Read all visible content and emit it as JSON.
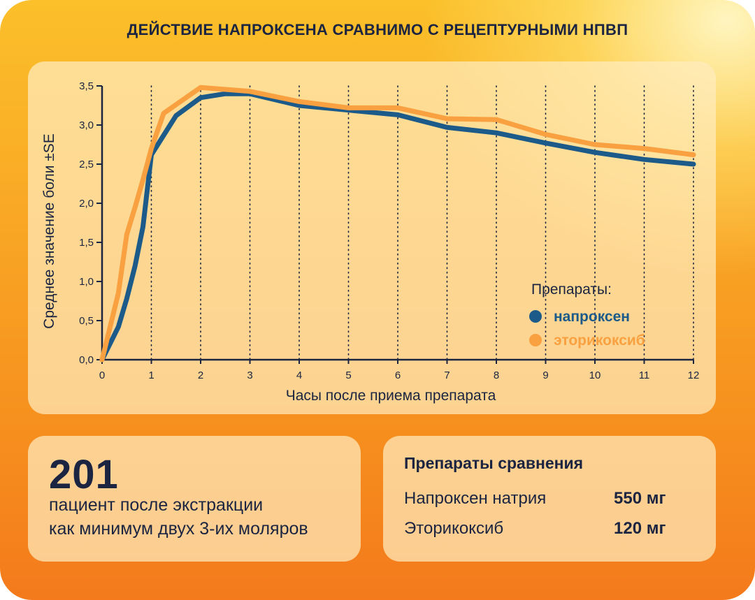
{
  "title": "ДЕЙСТВИЕ НАПРОКСЕНА СРАВНИМО С РЕЦЕПТУРНЫМИ НПВП",
  "colors": {
    "naproxen": "#1c5a8a",
    "etoricoxib": "#f9a040",
    "axis": "#1b2440",
    "text": "#1b2440"
  },
  "chart_data": {
    "type": "line",
    "xlabel": "Часы после приема препарата",
    "ylabel": "Среднее значение боли ±SE",
    "xlim": [
      0,
      12
    ],
    "ylim": [
      0,
      3.5
    ],
    "x_ticks": [
      "0",
      "1",
      "2",
      "3",
      "4",
      "5",
      "6",
      "7",
      "8",
      "9",
      "10",
      "11",
      "12"
    ],
    "y_ticks": [
      "0,0",
      "0,5",
      "1,0",
      "1,5",
      "2,0",
      "2,5",
      "3,0",
      "3,5"
    ],
    "grid": "vertical dotted",
    "legend_title": "Препараты:",
    "legend_position": "bottom-right",
    "series": [
      {
        "name": "напроксен",
        "color": "#1c5a8a",
        "x": [
          0,
          0.33,
          0.5,
          0.67,
          0.83,
          1,
          1.5,
          2,
          2.5,
          3,
          4,
          5,
          6,
          7,
          8,
          9,
          10,
          11,
          12
        ],
        "y": [
          0,
          0.42,
          0.78,
          1.2,
          1.7,
          2.62,
          3.12,
          3.35,
          3.4,
          3.4,
          3.25,
          3.19,
          3.13,
          2.97,
          2.9,
          2.77,
          2.65,
          2.56,
          2.5
        ]
      },
      {
        "name": "эторикоксиб",
        "color": "#f9a040",
        "x": [
          0,
          0.33,
          0.5,
          0.67,
          0.83,
          1,
          1.25,
          2,
          3,
          4,
          5,
          6,
          7,
          8,
          9,
          10,
          11,
          12
        ],
        "y": [
          0,
          0.85,
          1.6,
          1.95,
          2.3,
          2.7,
          3.15,
          3.48,
          3.43,
          3.3,
          3.22,
          3.22,
          3.08,
          3.07,
          2.88,
          2.75,
          2.7,
          2.62
        ]
      }
    ]
  },
  "patients": {
    "count": "201",
    "line1": "пациент после экстракции",
    "line2": "как минимум двух 3-их моляров"
  },
  "comparison": {
    "title": "Препараты сравнения",
    "rows": [
      {
        "drug": "Напроксен натрия",
        "dose": "550 мг"
      },
      {
        "drug": "Эторикоксиб",
        "dose": "120 мг"
      }
    ]
  }
}
